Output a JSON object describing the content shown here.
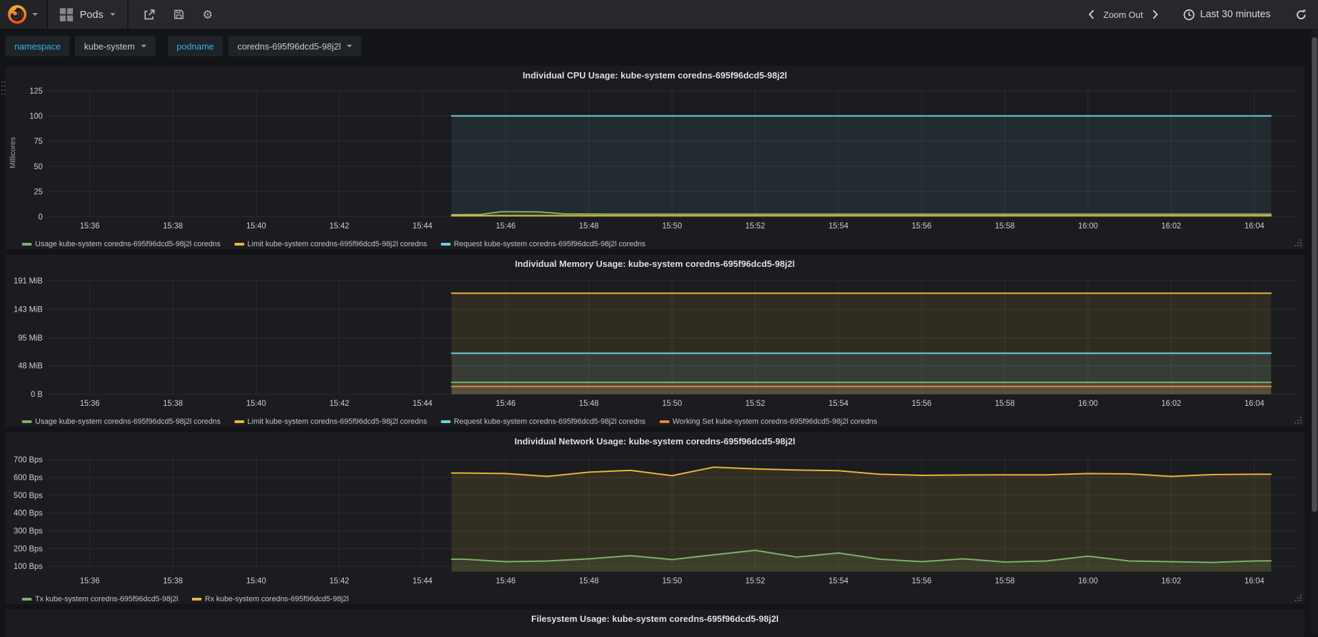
{
  "navbar": {
    "dashboard_name": "Pods",
    "zoom_out_label": "Zoom Out",
    "time_range": "Last 30 minutes"
  },
  "variables": [
    {
      "label": "namespace",
      "value": "kube-system"
    },
    {
      "label": "podname",
      "value": "coredns-695f96dcd5-98j2l"
    }
  ],
  "palette": {
    "green": "#7eb26d",
    "yellow": "#eab839",
    "cyan": "#6ed0e0",
    "orange": "#ef843c",
    "link": "#33b5e5"
  },
  "chart_data": [
    {
      "type": "line",
      "title": "Individual CPU Usage: kube-system coredns-695f96dcd5-98j2l",
      "ylabel": "Millicores",
      "xlim": [
        0,
        30
      ],
      "ylim": [
        0,
        127
      ],
      "x_axis_start": "15:35",
      "xticks": [
        [
          1,
          "15:36"
        ],
        [
          3,
          "15:38"
        ],
        [
          5,
          "15:40"
        ],
        [
          7,
          "15:42"
        ],
        [
          9,
          "15:44"
        ],
        [
          11,
          "15:46"
        ],
        [
          13,
          "15:48"
        ],
        [
          15,
          "15:50"
        ],
        [
          17,
          "15:52"
        ],
        [
          19,
          "15:54"
        ],
        [
          21,
          "15:56"
        ],
        [
          23,
          "15:58"
        ],
        [
          25,
          "16:00"
        ],
        [
          27,
          "16:02"
        ],
        [
          29,
          "16:04"
        ]
      ],
      "yticks": [
        [
          0,
          "0"
        ],
        [
          25,
          "25"
        ],
        [
          50,
          "50"
        ],
        [
          75,
          "75"
        ],
        [
          100,
          "100"
        ],
        [
          125,
          "125"
        ]
      ],
      "series": [
        {
          "name": "Usage kube-system coredns-695f96dcd5-98j2l coredns",
          "color": "#7eb26d",
          "fill_opacity": 0.1,
          "points": [
            [
              9.7,
              2.0
            ],
            [
              10.4,
              2.2
            ],
            [
              10.9,
              5.0
            ],
            [
              11.8,
              4.8
            ],
            [
              12.4,
              2.8
            ],
            [
              13.5,
              2.6
            ],
            [
              29.4,
              2.6
            ]
          ]
        },
        {
          "name": "Limit kube-system coredns-695f96dcd5-98j2l coredns",
          "color": "#eab839",
          "fill_opacity": 0.1,
          "points": [
            [
              9.7,
              1.0
            ],
            [
              29.4,
              1.0
            ]
          ]
        },
        {
          "name": "Request kube-system coredns-695f96dcd5-98j2l coredns",
          "color": "#6ed0e0",
          "fill_opacity": 0.09,
          "points": [
            [
              9.7,
              100
            ],
            [
              29.4,
              100
            ]
          ]
        }
      ]
    },
    {
      "type": "line",
      "title": "Individual Memory Usage: kube-system coredns-695f96dcd5-98j2l",
      "ylabel": "",
      "xlim": [
        0,
        30
      ],
      "ylim": [
        0,
        197
      ],
      "x_axis_start": "15:35",
      "xticks": [
        [
          1,
          "15:36"
        ],
        [
          3,
          "15:38"
        ],
        [
          5,
          "15:40"
        ],
        [
          7,
          "15:42"
        ],
        [
          9,
          "15:44"
        ],
        [
          11,
          "15:46"
        ],
        [
          13,
          "15:48"
        ],
        [
          15,
          "15:50"
        ],
        [
          17,
          "15:52"
        ],
        [
          19,
          "15:54"
        ],
        [
          21,
          "15:56"
        ],
        [
          23,
          "15:58"
        ],
        [
          25,
          "16:00"
        ],
        [
          27,
          "16:02"
        ],
        [
          29,
          "16:04"
        ]
      ],
      "yticks": [
        [
          0,
          "0 B"
        ],
        [
          48,
          "48 MiB"
        ],
        [
          95,
          "95 MiB"
        ],
        [
          143,
          "143 MiB"
        ],
        [
          191,
          "191 MiB"
        ]
      ],
      "series": [
        {
          "name": "Usage kube-system coredns-695f96dcd5-98j2l coredns",
          "color": "#7eb26d",
          "fill_opacity": 0.12,
          "points": [
            [
              9.7,
              20
            ],
            [
              29.4,
              20
            ]
          ]
        },
        {
          "name": "Limit kube-system coredns-695f96dcd5-98j2l coredns",
          "color": "#eab839",
          "fill_opacity": 0.1,
          "points": [
            [
              9.7,
              170
            ],
            [
              29.4,
              170
            ]
          ]
        },
        {
          "name": "Request kube-system coredns-695f96dcd5-98j2l coredns",
          "color": "#6ed0e0",
          "fill_opacity": 0.1,
          "points": [
            [
              9.7,
              69
            ],
            [
              29.4,
              69
            ]
          ]
        },
        {
          "name": "Working Set kube-system coredns-695f96dcd5-98j2l coredns",
          "color": "#ef843c",
          "fill_opacity": 0.12,
          "points": [
            [
              9.7,
              13
            ],
            [
              29.4,
              13
            ]
          ]
        }
      ]
    },
    {
      "type": "line",
      "title": "Individual Network Usage: kube-system coredns-695f96dcd5-98j2l",
      "ylabel": "",
      "xlim": [
        0,
        30
      ],
      "ylim": [
        70,
        728
      ],
      "x_axis_start": "15:35",
      "xticks": [
        [
          1,
          "15:36"
        ],
        [
          3,
          "15:38"
        ],
        [
          5,
          "15:40"
        ],
        [
          7,
          "15:42"
        ],
        [
          9,
          "15:44"
        ],
        [
          11,
          "15:46"
        ],
        [
          13,
          "15:48"
        ],
        [
          15,
          "15:50"
        ],
        [
          17,
          "15:52"
        ],
        [
          19,
          "15:54"
        ],
        [
          21,
          "15:56"
        ],
        [
          23,
          "15:58"
        ],
        [
          25,
          "16:00"
        ],
        [
          27,
          "16:02"
        ],
        [
          29,
          "16:04"
        ]
      ],
      "yticks": [
        [
          100,
          "100 Bps"
        ],
        [
          200,
          "200 Bps"
        ],
        [
          300,
          "300 Bps"
        ],
        [
          400,
          "400 Bps"
        ],
        [
          500,
          "500 Bps"
        ],
        [
          600,
          "600 Bps"
        ],
        [
          700,
          "700 Bps"
        ]
      ],
      "series": [
        {
          "name": "Tx kube-system coredns-695f96dcd5-98j2l",
          "color": "#7eb26d",
          "fill_opacity": 0.12,
          "points": [
            [
              9.7,
              140
            ],
            [
              10,
              140
            ],
            [
              11,
              126
            ],
            [
              12,
              130
            ],
            [
              13,
              142
            ],
            [
              14,
              160
            ],
            [
              15,
              138
            ],
            [
              16,
              165
            ],
            [
              17,
              190
            ],
            [
              18,
              152
            ],
            [
              19,
              175
            ],
            [
              20,
              140
            ],
            [
              21,
              126
            ],
            [
              22,
              142
            ],
            [
              23,
              124
            ],
            [
              24,
              130
            ],
            [
              25,
              157
            ],
            [
              26,
              130
            ],
            [
              27,
              126
            ],
            [
              28,
              122
            ],
            [
              29,
              130
            ],
            [
              29.4,
              131
            ]
          ]
        },
        {
          "name": "Rx kube-system coredns-695f96dcd5-98j2l",
          "color": "#eab839",
          "fill_opacity": 0.12,
          "points": [
            [
              9.7,
              625
            ],
            [
              10,
              625
            ],
            [
              11,
              622
            ],
            [
              12,
              606
            ],
            [
              13,
              630
            ],
            [
              14,
              640
            ],
            [
              15,
              610
            ],
            [
              16,
              658
            ],
            [
              17,
              648
            ],
            [
              18,
              642
            ],
            [
              19,
              638
            ],
            [
              20,
              618
            ],
            [
              21,
              612
            ],
            [
              22,
              614
            ],
            [
              23,
              615
            ],
            [
              24,
              615
            ],
            [
              25,
              622
            ],
            [
              26,
              620
            ],
            [
              27,
              606
            ],
            [
              28,
              616
            ],
            [
              29,
              618
            ],
            [
              29.4,
              618
            ]
          ]
        }
      ]
    },
    {
      "type": "line",
      "title": "Filesystem Usage: kube-system coredns-695f96dcd5-98j2l"
    }
  ]
}
